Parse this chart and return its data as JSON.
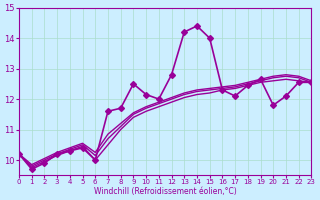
{
  "xlabel": "Windchill (Refroidissement éolien,°C)",
  "background_color": "#cceeff",
  "grid_color": "#aaddcc",
  "line_color": "#990099",
  "xlim": [
    0,
    23
  ],
  "ylim": [
    9.5,
    15
  ],
  "xticks": [
    0,
    1,
    2,
    3,
    4,
    5,
    6,
    7,
    8,
    9,
    10,
    11,
    12,
    13,
    14,
    15,
    16,
    17,
    18,
    19,
    20,
    21,
    22,
    23
  ],
  "yticks": [
    10,
    11,
    12,
    13,
    14,
    15
  ],
  "series": [
    {
      "x": [
        0,
        1,
        2,
        3,
        4,
        5,
        6,
        7,
        8,
        9,
        10,
        11,
        12,
        13,
        14,
        15,
        16,
        17,
        18,
        19,
        20,
        21,
        22,
        23
      ],
      "y": [
        10.2,
        9.7,
        9.9,
        10.2,
        10.3,
        10.4,
        10.0,
        11.6,
        11.7,
        12.5,
        12.15,
        12.0,
        12.8,
        14.2,
        14.4,
        14.0,
        12.3,
        12.1,
        12.45,
        12.65,
        11.8,
        12.1,
        12.55,
        12.55
      ],
      "marker": "D",
      "markersize": 3,
      "linewidth": 1.2
    },
    {
      "x": [
        0,
        1,
        2,
        3,
        4,
        5,
        6,
        7,
        8,
        9,
        10,
        11,
        12,
        13,
        14,
        15,
        16,
        17,
        18,
        19,
        20,
        21,
        22,
        23
      ],
      "y": [
        10.2,
        9.75,
        9.95,
        10.15,
        10.3,
        10.45,
        10.0,
        10.5,
        11.0,
        11.4,
        11.6,
        11.75,
        11.9,
        12.05,
        12.15,
        12.2,
        12.3,
        12.35,
        12.45,
        12.55,
        12.6,
        12.65,
        12.6,
        12.55
      ],
      "marker": null,
      "markersize": 0,
      "linewidth": 1.0
    },
    {
      "x": [
        0,
        1,
        2,
        3,
        4,
        5,
        6,
        7,
        8,
        9,
        10,
        11,
        12,
        13,
        14,
        15,
        16,
        17,
        18,
        19,
        20,
        21,
        22,
        23
      ],
      "y": [
        10.2,
        9.8,
        10.0,
        10.2,
        10.35,
        10.5,
        10.15,
        10.7,
        11.1,
        11.5,
        11.7,
        11.85,
        12.0,
        12.15,
        12.25,
        12.3,
        12.35,
        12.4,
        12.5,
        12.6,
        12.7,
        12.75,
        12.7,
        12.55
      ],
      "marker": null,
      "markersize": 0,
      "linewidth": 1.0
    },
    {
      "x": [
        0,
        1,
        2,
        3,
        4,
        5,
        6,
        7,
        8,
        9,
        10,
        11,
        12,
        13,
        14,
        15,
        16,
        17,
        18,
        19,
        20,
        21,
        22,
        23
      ],
      "y": [
        10.2,
        9.85,
        10.05,
        10.25,
        10.4,
        10.55,
        10.25,
        10.85,
        11.2,
        11.55,
        11.75,
        11.9,
        12.05,
        12.2,
        12.3,
        12.35,
        12.4,
        12.45,
        12.55,
        12.65,
        12.75,
        12.8,
        12.75,
        12.6
      ],
      "marker": null,
      "markersize": 0,
      "linewidth": 1.0
    }
  ]
}
